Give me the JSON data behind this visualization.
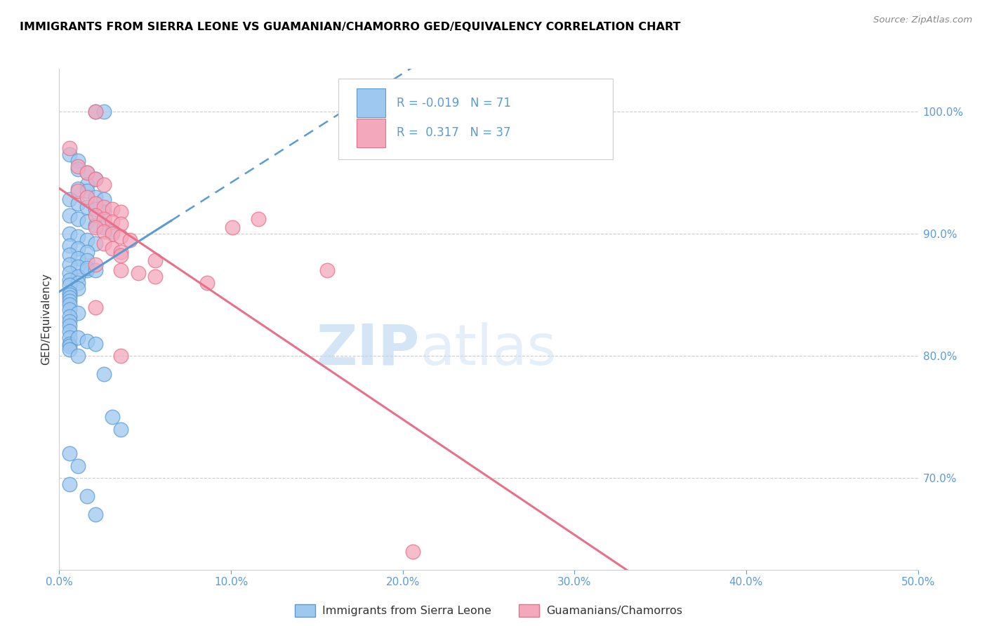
{
  "title": "IMMIGRANTS FROM SIERRA LEONE VS GUAMANIAN/CHAMORRO GED/EQUIVALENCY CORRELATION CHART",
  "source": "Source: ZipAtlas.com",
  "ylabel": "GED/Equivalency",
  "ytick_labels": [
    "100.0%",
    "90.0%",
    "80.0%",
    "70.0%"
  ],
  "ytick_values": [
    1.0,
    0.9,
    0.8,
    0.7
  ],
  "xmin": 0.0,
  "xmax": 0.5,
  "ymin": 0.625,
  "ymax": 1.035,
  "legend_label1": "Immigrants from Sierra Leone",
  "legend_label2": "Guamanians/Chamorros",
  "R1": -0.019,
  "N1": 71,
  "R2": 0.317,
  "N2": 37,
  "color_blue": "#9EC8F0",
  "color_pink": "#F4A8BC",
  "color_blue_line": "#5B9BD5",
  "color_pink_line": "#E8708A",
  "watermark_zip": "ZIP",
  "watermark_atlas": "atlas",
  "blue_scatter_x": [
    0.021,
    0.026,
    0.006,
    0.011,
    0.011,
    0.016,
    0.021,
    0.016,
    0.011,
    0.016,
    0.021,
    0.026,
    0.006,
    0.011,
    0.016,
    0.021,
    0.026,
    0.006,
    0.011,
    0.016,
    0.021,
    0.026,
    0.031,
    0.006,
    0.011,
    0.016,
    0.021,
    0.006,
    0.011,
    0.016,
    0.006,
    0.011,
    0.016,
    0.006,
    0.011,
    0.016,
    0.006,
    0.011,
    0.006,
    0.011,
    0.006,
    0.011,
    0.006,
    0.006,
    0.006,
    0.006,
    0.006,
    0.016,
    0.021,
    0.006,
    0.011,
    0.006,
    0.006,
    0.006,
    0.006,
    0.006,
    0.006,
    0.006,
    0.006,
    0.011,
    0.016,
    0.021,
    0.011,
    0.026,
    0.031,
    0.036,
    0.006,
    0.011,
    0.006,
    0.016,
    0.021
  ],
  "blue_scatter_y": [
    1.0,
    1.0,
    0.965,
    0.96,
    0.953,
    0.95,
    0.945,
    0.94,
    0.937,
    0.935,
    0.93,
    0.928,
    0.928,
    0.925,
    0.922,
    0.92,
    0.918,
    0.915,
    0.912,
    0.91,
    0.907,
    0.905,
    0.902,
    0.9,
    0.898,
    0.895,
    0.892,
    0.89,
    0.888,
    0.885,
    0.883,
    0.88,
    0.878,
    0.875,
    0.873,
    0.87,
    0.868,
    0.865,
    0.862,
    0.86,
    0.858,
    0.855,
    0.852,
    0.85,
    0.848,
    0.845,
    0.842,
    0.872,
    0.87,
    0.838,
    0.835,
    0.832,
    0.828,
    0.825,
    0.82,
    0.815,
    0.81,
    0.808,
    0.805,
    0.815,
    0.812,
    0.81,
    0.8,
    0.785,
    0.75,
    0.74,
    0.72,
    0.71,
    0.695,
    0.685,
    0.67
  ],
  "pink_scatter_x": [
    0.021,
    0.006,
    0.011,
    0.016,
    0.021,
    0.026,
    0.011,
    0.016,
    0.021,
    0.026,
    0.031,
    0.036,
    0.021,
    0.026,
    0.031,
    0.036,
    0.021,
    0.026,
    0.031,
    0.036,
    0.041,
    0.026,
    0.031,
    0.036,
    0.036,
    0.056,
    0.021,
    0.036,
    0.046,
    0.056,
    0.101,
    0.156,
    0.021,
    0.116,
    0.086,
    0.036,
    0.206
  ],
  "pink_scatter_y": [
    1.0,
    0.97,
    0.955,
    0.95,
    0.945,
    0.94,
    0.935,
    0.93,
    0.925,
    0.922,
    0.92,
    0.918,
    0.915,
    0.912,
    0.91,
    0.908,
    0.905,
    0.902,
    0.9,
    0.898,
    0.895,
    0.892,
    0.888,
    0.885,
    0.882,
    0.878,
    0.875,
    0.87,
    0.868,
    0.865,
    0.905,
    0.87,
    0.84,
    0.912,
    0.86,
    0.8,
    0.64
  ],
  "xtick_vals": [
    0.0,
    0.1,
    0.2,
    0.3,
    0.4,
    0.5
  ],
  "xtick_labels": [
    "0.0%",
    "10.0%",
    "20.0%",
    "30.0%",
    "40.0%",
    "50.0%"
  ]
}
